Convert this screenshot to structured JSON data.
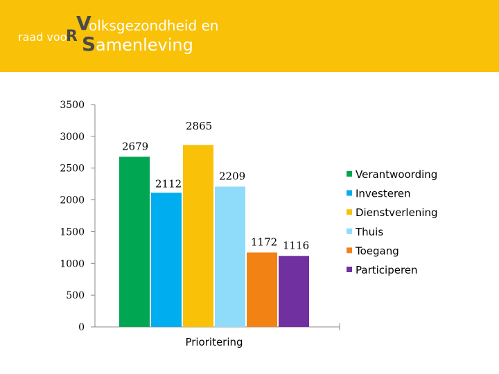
{
  "header": {
    "logo_prefix": "raad voo",
    "logo_r": "R",
    "logo_v": "V",
    "logo_line1": "olksgezondheid en",
    "logo_s": "S",
    "logo_line2": "amenleving",
    "background_color": "#f9c107"
  },
  "chart_data": {
    "type": "bar",
    "categories": [
      "Prioritering"
    ],
    "xlabel": "",
    "ylabel": "",
    "ylim": [
      0,
      3500
    ],
    "yticks": [
      0,
      500,
      1000,
      1500,
      2000,
      2500,
      3000,
      3500
    ],
    "grid": false,
    "legend_position": "right",
    "series": [
      {
        "name": "Verantwoording",
        "values": [
          2679
        ],
        "color": "#00a651"
      },
      {
        "name": "Investeren",
        "values": [
          2112
        ],
        "color": "#00aeef"
      },
      {
        "name": "Dienstverlening",
        "values": [
          2865
        ],
        "color": "#f9c107"
      },
      {
        "name": "Thuis",
        "values": [
          2209
        ],
        "color": "#8fdcfa"
      },
      {
        "name": "Toegang",
        "values": [
          1172
        ],
        "color": "#f38214"
      },
      {
        "name": "Participeren",
        "values": [
          1116
        ],
        "color": "#7030a0"
      }
    ]
  }
}
